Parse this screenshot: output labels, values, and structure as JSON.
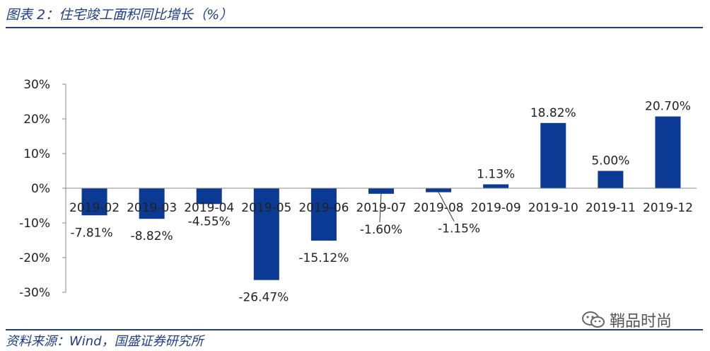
{
  "header": {
    "title": "图表 2：住宅竣工面积同比增长（%）"
  },
  "footer": {
    "source": "资料来源：Wind，国盛证券研究所"
  },
  "watermark": {
    "text": "鞘品时尚",
    "icon": "wechat-icon"
  },
  "colors": {
    "bar": "#0b3a94",
    "accent": "#1f3d8c",
    "axis": "#888888"
  },
  "chart_data": {
    "type": "bar",
    "categories": [
      "2019-02",
      "2019-03",
      "2019-04",
      "2019-05",
      "2019-06",
      "2019-07",
      "2019-08",
      "2019-09",
      "2019-10",
      "2019-11",
      "2019-12"
    ],
    "values": [
      -7.81,
      -8.82,
      -4.55,
      -26.47,
      -15.12,
      -1.6,
      -1.15,
      1.13,
      18.82,
      5.0,
      20.7
    ],
    "data_labels": [
      "-7.81%",
      "-8.82%",
      "-4.55%",
      "-26.47%",
      "-15.12%",
      "-1.60%",
      "-1.15%",
      "1.13%",
      "18.82%",
      "5.00%",
      "20.70%"
    ],
    "ytick_labels": [
      "30%",
      "20%",
      "10%",
      "0%",
      "-10%",
      "-20%",
      "-30%"
    ],
    "ylim": [
      -30,
      30
    ],
    "grid": false,
    "legend": "none"
  }
}
